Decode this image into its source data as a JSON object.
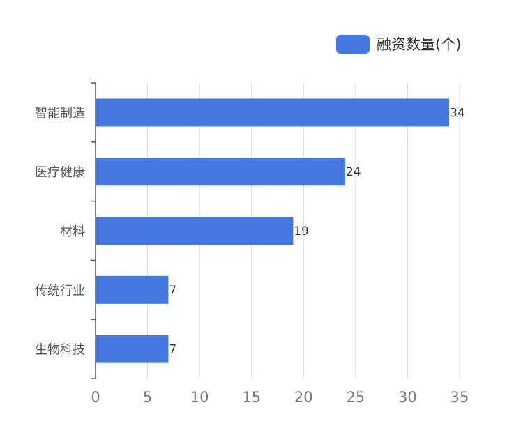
{
  "chart_data": {
    "type": "bar",
    "orientation": "horizontal",
    "categories": [
      "智能制造",
      "医疗健康",
      "材料",
      "传统行业",
      "生物科技"
    ],
    "series": [
      {
        "name": "融资数量(个)",
        "values": [
          34,
          24,
          19,
          7,
          7
        ],
        "color": "#4477e0"
      }
    ],
    "xlim": [
      0,
      35
    ],
    "x_ticks": [
      "0",
      "5",
      "10",
      "15",
      "20",
      "25",
      "30",
      "35"
    ],
    "grid": "vertical",
    "legend_position": "top-right",
    "data_labels": true
  }
}
